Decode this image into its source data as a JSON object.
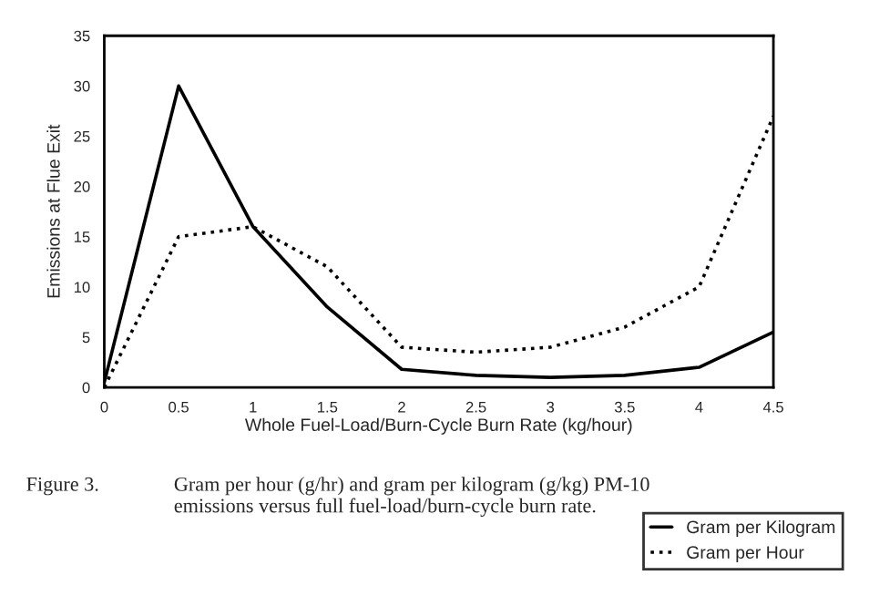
{
  "chart_data": {
    "type": "line",
    "xlabel": "Whole Fuel-Load/Burn-Cycle Burn Rate (kg/hour)",
    "ylabel": "Emissions at Flue Exit",
    "x": [
      0,
      0.5,
      1,
      1.5,
      2,
      2.5,
      3,
      3.5,
      4,
      4.5
    ],
    "series": [
      {
        "name": "Gram per Kilogram",
        "color": "#000000",
        "line_style": "solid",
        "values": [
          0.5,
          30,
          16,
          8,
          1.8,
          1.2,
          1.0,
          1.2,
          2,
          5.5
        ]
      },
      {
        "name": "Gram per Hour",
        "color": "#000000",
        "line_style": "dotted",
        "values": [
          0,
          15,
          16,
          12,
          4,
          3.5,
          4,
          6,
          10,
          27
        ]
      }
    ],
    "xlim": [
      0,
      4.5
    ],
    "ylim": [
      0,
      35
    ],
    "xticks": [
      0,
      0.5,
      1,
      1.5,
      2,
      2.5,
      3,
      3.5,
      4,
      4.5
    ],
    "yticks": [
      0,
      5,
      10,
      15,
      20,
      25,
      30,
      35
    ],
    "grid": false,
    "legend": "bottom right",
    "marker": "none",
    "annotations": [
      "Figure 3.",
      "Gram per hour (g/hr) and gram per kilogram (g/kg) PM-10 emissions versus full fuel-load/burn-cycle burn rate."
    ]
  }
}
